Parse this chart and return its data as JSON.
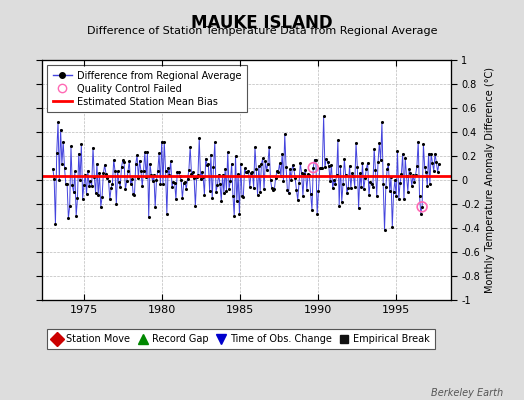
{
  "title": "MAUKE ISLAND",
  "subtitle": "Difference of Station Temperature Data from Regional Average",
  "ylabel": "Monthly Temperature Anomaly Difference (°C)",
  "xlabel_years": [
    1975,
    1980,
    1985,
    1990,
    1995
  ],
  "ylim": [
    -1,
    1
  ],
  "yticks": [
    -1,
    -0.8,
    -0.6,
    -0.4,
    -0.2,
    0,
    0.2,
    0.4,
    0.6,
    0.8,
    1
  ],
  "ytick_labels": [
    "-1",
    "-0.8",
    "-0.6",
    "-0.4",
    "-0.2",
    "0",
    "0.2",
    "0.4",
    "0.6",
    "0.8",
    "1"
  ],
  "bias_value": 0.03,
  "line_color": "#4444dd",
  "dot_color": "#000000",
  "bias_color": "#ff0000",
  "bg_color": "#dddddd",
  "plot_bg": "#ffffff",
  "watermark": "Berkeley Earth",
  "qc_failed_color": "#ff69b4",
  "seed": 42,
  "start_year": 1973.0,
  "end_year": 1997.75,
  "n_points": 299
}
